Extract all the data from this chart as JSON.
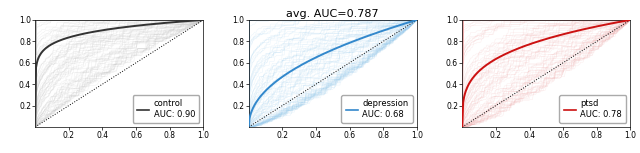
{
  "title": "avg. AUC=0.787",
  "title_fontsize": 8,
  "panels": [
    {
      "label": "control",
      "auc": "0.90",
      "color_light": "#bbbbbb",
      "color_dark": "#333333",
      "avg_auc": 0.9,
      "spread": 0.25,
      "n_curves": 120,
      "min_auc": 0.52,
      "max_auc": 0.999
    },
    {
      "label": "depression",
      "auc": "0.68",
      "color_light": "#99ccee",
      "color_dark": "#3388cc",
      "avg_auc": 0.68,
      "spread": 0.3,
      "n_curves": 120,
      "min_auc": 0.4,
      "max_auc": 0.999
    },
    {
      "label": "ptsd",
      "auc": "0.78",
      "color_light": "#f0aaaa",
      "color_dark": "#cc1111",
      "avg_auc": 0.78,
      "spread": 0.28,
      "n_curves": 120,
      "min_auc": 0.4,
      "max_auc": 0.999
    }
  ],
  "xlim": [
    0,
    1
  ],
  "ylim": [
    0,
    1
  ],
  "xticks": [
    0.2,
    0.4,
    0.6,
    0.8,
    1.0
  ],
  "yticks": [
    0.2,
    0.4,
    0.6,
    0.8,
    1.0
  ],
  "tick_fontsize": 5.5,
  "legend_fontsize": 6,
  "alpha_light": 0.22,
  "lw_light": 0.35,
  "lw_dark": 1.4,
  "seed": 7
}
